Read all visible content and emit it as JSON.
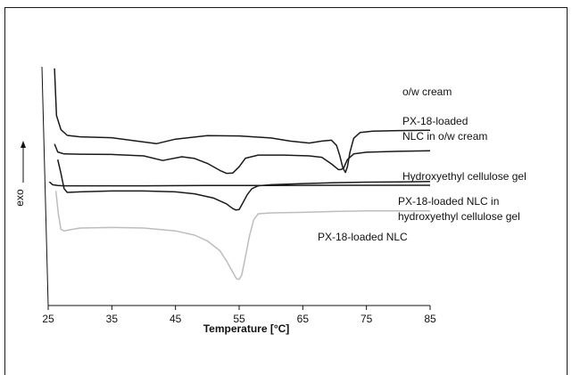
{
  "chart_data": {
    "type": "line",
    "title": "",
    "xlabel": "Temperature [°C]",
    "ylabel": "exo",
    "xlim": [
      25,
      85
    ],
    "xticks": [
      25,
      35,
      45,
      55,
      65,
      75,
      85
    ],
    "grid": false,
    "legend": "none",
    "series": [
      {
        "name": "o/w cream",
        "color": "#1a1a1a",
        "x": [
          26.0,
          26.3,
          27.0,
          28.0,
          30,
          35,
          40,
          42,
          45,
          50,
          55,
          60,
          63,
          66,
          68,
          69.5,
          70.3,
          70.8,
          71.3,
          71.7,
          72.0,
          72.4,
          73.0,
          74.0,
          76,
          80,
          85
        ],
        "y": [
          41,
          24.5,
          19.5,
          17.5,
          17,
          16.7,
          15.2,
          14.6,
          16.2,
          17.4,
          17.3,
          16.6,
          15.5,
          14.8,
          15.5,
          15.8,
          14.0,
          10.5,
          6.0,
          4.5,
          6.5,
          11.5,
          16.5,
          18.5,
          19.0,
          19.2,
          19.3
        ]
      },
      {
        "name": "PX-18-loaded NLC in o/w cream",
        "color": "#1a1a1a",
        "x": [
          26.0,
          26.5,
          27.5,
          30,
          35,
          40,
          43,
          46,
          48,
          50,
          52,
          53,
          54,
          55,
          56,
          58,
          62,
          66,
          68,
          69.5,
          70.6,
          71.0,
          71.4,
          72.0,
          73.0,
          75,
          80,
          85
        ],
        "y": [
          14.5,
          11.7,
          11.0,
          10.9,
          10.8,
          10.3,
          8.7,
          10.0,
          9.4,
          7.7,
          5.2,
          4.2,
          4.3,
          6.5,
          9.5,
          10.6,
          10.6,
          10.3,
          9.8,
          7.5,
          5.5,
          5.5,
          6.0,
          9.0,
          11.0,
          11.6,
          11.9,
          12.1
        ]
      },
      {
        "name": "Hydroxyethyl cellulose gel",
        "color": "#1a1a1a",
        "x": [
          25.2,
          25.7,
          26.5,
          27.5,
          30,
          40,
          50,
          60,
          70,
          80,
          85
        ],
        "y": [
          1.2,
          0.2,
          -0.1,
          -0.2,
          -0.2,
          -0.2,
          -0.1,
          -0.1,
          0.0,
          0.0,
          0.0
        ]
      },
      {
        "name": "PX-18-loaded NLC in hydroxyethyl cellulose gel",
        "color": "#1a1a1a",
        "x": [
          26.5,
          27.0,
          27.5,
          28.0,
          30,
          35,
          40,
          45,
          48,
          51,
          53,
          54,
          54.5,
          55.0,
          55.5,
          56.3,
          57.0,
          58,
          60,
          65,
          70,
          75,
          80,
          85
        ],
        "y": [
          9.0,
          4.2,
          -1.2,
          -2.5,
          -2.3,
          -2.0,
          -2.0,
          -2.3,
          -3.0,
          -4.5,
          -6.5,
          -8.2,
          -8.7,
          -8.5,
          -6.5,
          -3.2,
          -1.2,
          -0.2,
          0.2,
          0.6,
          0.9,
          1.1,
          1.2,
          1.3
        ]
      },
      {
        "name": "PX-18-loaded NLC",
        "color": "#bdbdbd",
        "x": [
          26.2,
          26.6,
          27.0,
          27.5,
          28.5,
          30,
          35,
          40,
          45,
          48,
          50,
          52,
          53,
          54,
          54.6,
          55.0,
          55.4,
          56.0,
          56.6,
          57.3,
          58.0,
          60,
          65,
          70,
          75,
          80,
          85
        ],
        "y": [
          -2.0,
          -10.0,
          -15.5,
          -16.0,
          -15.6,
          -15.0,
          -14.8,
          -15.0,
          -16.0,
          -17.5,
          -19.5,
          -23.0,
          -26.5,
          -30.5,
          -32.8,
          -33.0,
          -31.5,
          -25.0,
          -18.0,
          -12.0,
          -10.0,
          -9.7,
          -9.5,
          -9.2,
          -9.0,
          -9.0,
          -9.0
        ]
      }
    ],
    "labels": [
      "o/w cream",
      "PX-18-loaded",
      "NLC in o/w cream",
      "Hydroxyethyl cellulose gel",
      "PX-18-loaded NLC in",
      "hydroxyethyl cellulose gel",
      "PX-18-loaded NLC"
    ]
  }
}
